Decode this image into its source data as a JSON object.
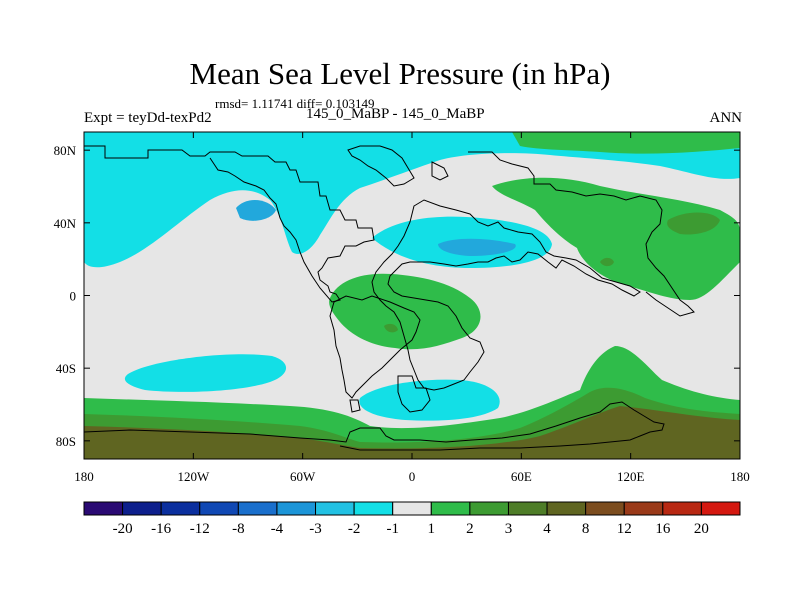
{
  "title": "Mean Sea Level Pressure (in hPa)",
  "stats_line": "rmsd= 1.11741 diff= 0.103149",
  "experiment_label": "Expt = teyDd-texPd2",
  "subtitle": "145_0_MaBP - 145_0_MaBP",
  "season": "ANN",
  "axes": {
    "x_ticks": [
      "180",
      "120W",
      "60W",
      "0",
      "60E",
      "120E",
      "180"
    ],
    "y_ticks": [
      "80N",
      "40N",
      "0",
      "40S",
      "80S"
    ]
  },
  "colorbar": {
    "labels": [
      "-20",
      "-16",
      "-12",
      "-8",
      "-4",
      "-3",
      "-2",
      "-1",
      "1",
      "2",
      "3",
      "4",
      "8",
      "12",
      "16",
      "20"
    ],
    "colors": [
      "#2a0a73",
      "#0d1f8c",
      "#0b2f9e",
      "#1048b4",
      "#1a6fcc",
      "#1c95d8",
      "#22c1e3",
      "#13dfe6",
      "#e6e6e6",
      "#2fbc4a",
      "#3d9b32",
      "#4e7d28",
      "#5f6521",
      "#7c4d1f",
      "#9a3a19",
      "#b82812",
      "#d41810"
    ]
  },
  "map_colors": {
    "neutral": "#e6e6e6",
    "light_negative": "#13dfe6",
    "moderate_negative": "#22a8dc",
    "light_positive": "#2fbc4a",
    "moderate_positive": "#3d9b32",
    "strong_positive": "#5f6521",
    "coastline": "#000000"
  }
}
